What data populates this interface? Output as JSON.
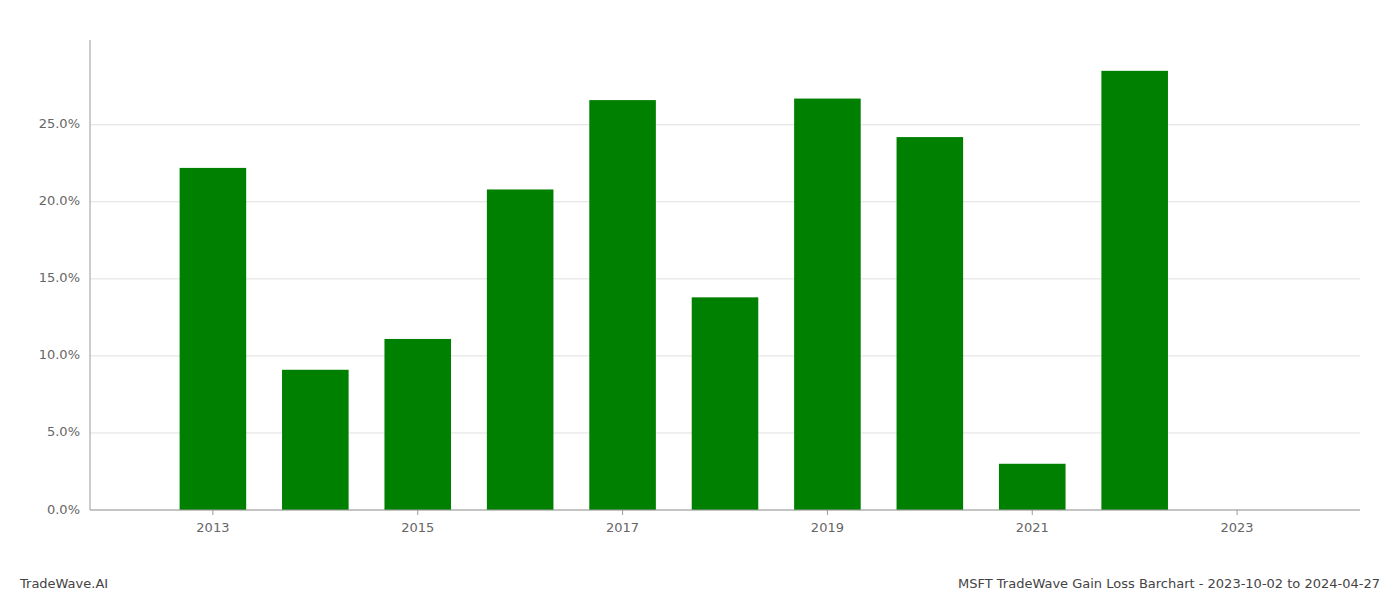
{
  "chart_data": {
    "type": "bar",
    "x": [
      2013,
      2014,
      2015,
      2016,
      2017,
      2018,
      2019,
      2020,
      2021,
      2022
    ],
    "values": [
      0.222,
      0.091,
      0.111,
      0.208,
      0.266,
      0.138,
      0.267,
      0.242,
      0.03,
      0.285
    ],
    "color": "#008000",
    "xlim": [
      2011.8,
      2024.2
    ],
    "xticks": [
      2013,
      2015,
      2017,
      2019,
      2021,
      2023
    ],
    "ylim": [
      0,
      0.305
    ],
    "yticks": [
      {
        "value": 0.0,
        "label": "0.0%"
      },
      {
        "value": 0.05,
        "label": "5.0%"
      },
      {
        "value": 0.1,
        "label": "10.0%"
      },
      {
        "value": 0.15,
        "label": "15.0%"
      },
      {
        "value": 0.2,
        "label": "20.0%"
      },
      {
        "value": 0.25,
        "label": "25.0%"
      }
    ],
    "grid": true,
    "annotations": [
      "TradeWave.AI",
      "MSFT TradeWave Gain Loss Barchart - 2023-10-02 to 2024-04-27"
    ]
  }
}
